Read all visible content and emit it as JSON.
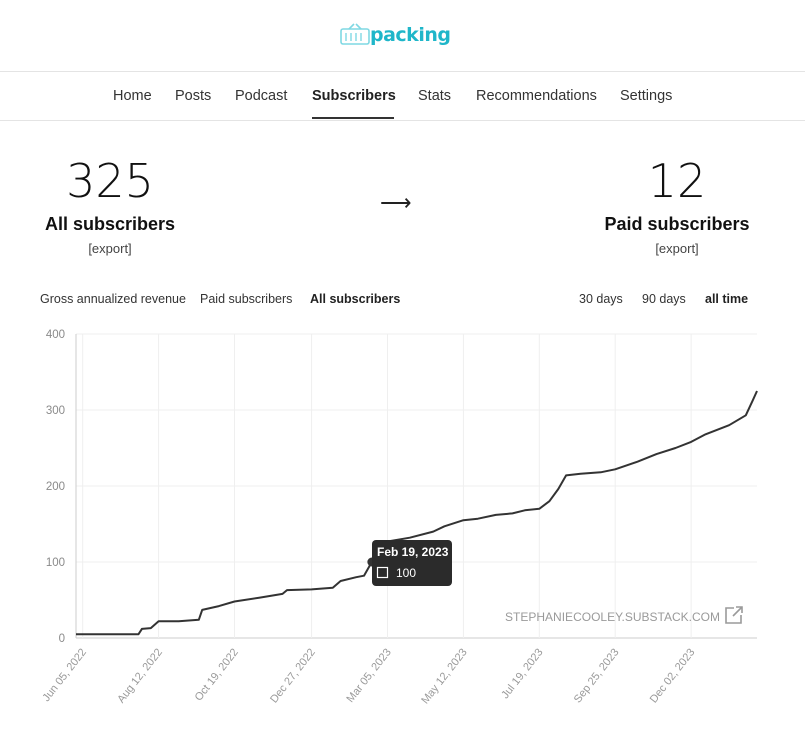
{
  "logo": {
    "text": "packing"
  },
  "nav": {
    "items": [
      "Home",
      "Posts",
      "Podcast",
      "Subscribers",
      "Stats",
      "Recommendations",
      "Settings"
    ],
    "active": "Subscribers"
  },
  "stats": {
    "all": {
      "count": "325",
      "label": "All subscribers",
      "export": "[export]"
    },
    "paid": {
      "count": "12",
      "label": "Paid subscribers",
      "export": "[export]"
    },
    "arrow": "⟶"
  },
  "metric_tabs": [
    "Gross annualized revenue",
    "Paid subscribers",
    "All subscribers"
  ],
  "metric_active": "All subscribers",
  "range_tabs": [
    "30 days",
    "90 days",
    "all time"
  ],
  "range_active": "all time",
  "tooltip": {
    "date": "Feb 19, 2023",
    "value": "100"
  },
  "watermark": "STEPHANIECOOLEY.SUBSTACK.COM",
  "colors": {
    "line": "#333333",
    "accent": "#1fb6c9",
    "grid": "#efefef"
  },
  "chart_data": {
    "type": "line",
    "ylim": [
      0,
      400
    ],
    "yticks": [
      0,
      100,
      200,
      300,
      400
    ],
    "xticks": [
      "Jun 05, 2022",
      "Aug 12, 2022",
      "Oct 19, 2022",
      "Dec 27, 2022",
      "Mar 05, 2023",
      "May 12, 2023",
      "Jul 19, 2023",
      "Sep 25, 2023",
      "Dec 02, 2023"
    ],
    "grid": true,
    "series": [
      {
        "points": [
          [
            "2022-05-30",
            5
          ],
          [
            "2022-06-05",
            5
          ],
          [
            "2022-07-10",
            5
          ],
          [
            "2022-07-25",
            5
          ],
          [
            "2022-07-28",
            12
          ],
          [
            "2022-08-05",
            13
          ],
          [
            "2022-08-12",
            22
          ],
          [
            "2022-08-30",
            22
          ],
          [
            "2022-09-17",
            24
          ],
          [
            "2022-09-20",
            37
          ],
          [
            "2022-10-05",
            42
          ],
          [
            "2022-10-19",
            48
          ],
          [
            "2022-11-10",
            53
          ],
          [
            "2022-12-01",
            58
          ],
          [
            "2022-12-05",
            63
          ],
          [
            "2022-12-27",
            64
          ],
          [
            "2023-01-15",
            66
          ],
          [
            "2023-01-22",
            75
          ],
          [
            "2023-02-05",
            80
          ],
          [
            "2023-02-12",
            82
          ],
          [
            "2023-02-19",
            100
          ],
          [
            "2023-02-27",
            115
          ],
          [
            "2023-03-05",
            127
          ],
          [
            "2023-03-25",
            132
          ],
          [
            "2023-04-15",
            140
          ],
          [
            "2023-04-25",
            147
          ],
          [
            "2023-05-12",
            155
          ],
          [
            "2023-05-25",
            157
          ],
          [
            "2023-06-10",
            162
          ],
          [
            "2023-06-25",
            164
          ],
          [
            "2023-07-06",
            168
          ],
          [
            "2023-07-19",
            170
          ],
          [
            "2023-07-28",
            180
          ],
          [
            "2023-08-05",
            196
          ],
          [
            "2023-08-12",
            214
          ],
          [
            "2023-08-25",
            216
          ],
          [
            "2023-09-12",
            218
          ],
          [
            "2023-09-25",
            222
          ],
          [
            "2023-10-15",
            232
          ],
          [
            "2023-11-01",
            242
          ],
          [
            "2023-11-18",
            250
          ],
          [
            "2023-12-02",
            258
          ],
          [
            "2023-12-15",
            268
          ],
          [
            "2024-01-05",
            280
          ],
          [
            "2024-01-20",
            293
          ],
          [
            "2024-01-26",
            312
          ],
          [
            "2024-01-30",
            325
          ]
        ]
      }
    ]
  }
}
